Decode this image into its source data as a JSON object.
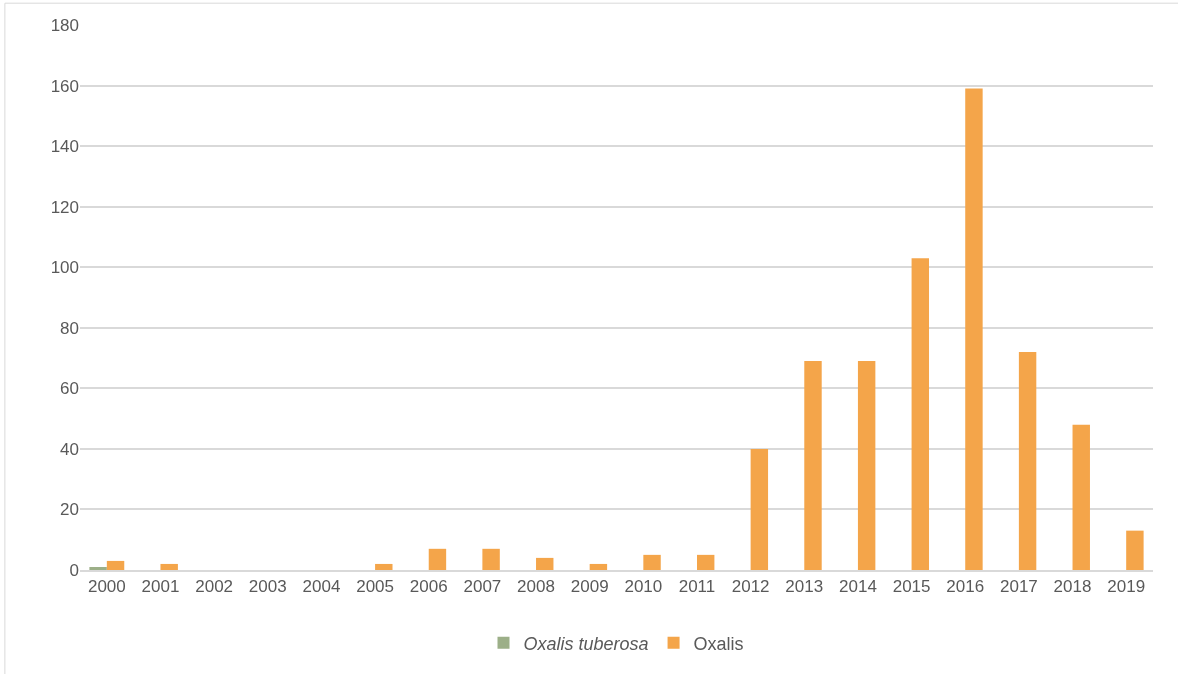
{
  "chart_data": {
    "type": "bar",
    "categories": [
      "2000",
      "2001",
      "2002",
      "2003",
      "2004",
      "2005",
      "2006",
      "2007",
      "2008",
      "2009",
      "2010",
      "2011",
      "2012",
      "2013",
      "2014",
      "2015",
      "2016",
      "2017",
      "2018",
      "2019"
    ],
    "series": [
      {
        "name": "Oxalis tuberosa",
        "color": "#9caf88",
        "values": [
          1,
          0,
          0,
          0,
          0,
          0,
          0,
          0,
          0,
          0,
          0,
          0,
          0,
          0,
          0,
          0,
          0,
          0,
          0,
          0
        ]
      },
      {
        "name": "Oxalis",
        "color": "#f4a54a",
        "values": [
          3,
          2,
          0,
          0,
          0,
          2,
          7,
          7,
          4,
          2,
          5,
          5,
          40,
          69,
          69,
          103,
          159,
          72,
          48,
          13
        ]
      }
    ],
    "ylim": [
      0,
      180
    ],
    "yticks": [
      0,
      20,
      40,
      60,
      80,
      100,
      120,
      140,
      160,
      180
    ],
    "grid": "y",
    "legend": "bottom"
  }
}
